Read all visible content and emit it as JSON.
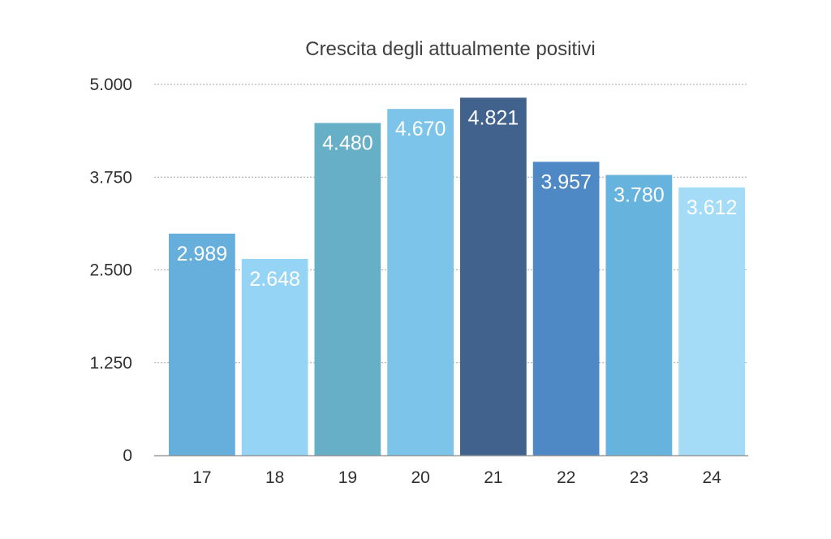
{
  "chart_data": {
    "type": "bar",
    "title": "Crescita degli attualmente positivi",
    "xlabel": "",
    "ylabel": "",
    "categories": [
      "17",
      "18",
      "19",
      "20",
      "21",
      "22",
      "23",
      "24"
    ],
    "values": [
      2989,
      2648,
      4480,
      4670,
      4821,
      3957,
      3780,
      3612
    ],
    "value_labels": [
      "2.989",
      "2.648",
      "4.480",
      "4.670",
      "4.821",
      "3.957",
      "3.780",
      "3.612"
    ],
    "ylim": [
      0,
      5000
    ],
    "yticks": [
      0,
      1250,
      2500,
      3750,
      5000
    ],
    "ytick_labels": [
      "0",
      "1.250",
      "2.500",
      "3.750",
      "5.000"
    ],
    "grid": true,
    "legend": "none",
    "colors": [
      "#66aedb",
      "#96d4f6",
      "#66afc6",
      "#7cc4ea",
      "#41628c",
      "#4f89c5",
      "#66b4de",
      "#a4dcf7"
    ]
  }
}
